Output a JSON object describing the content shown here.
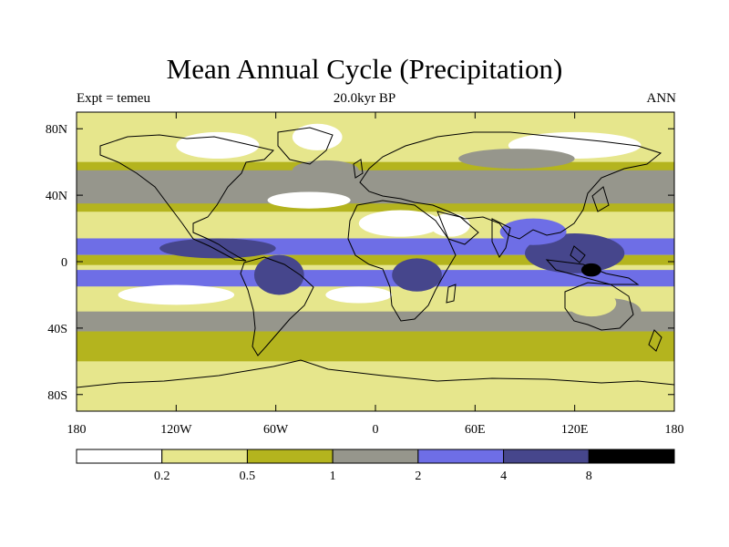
{
  "title": "Mean Annual Cycle (Precipitation)",
  "subtitle_left": "Expt = temeu",
  "subtitle_center": "20.0kyr BP",
  "subtitle_right": "ANN",
  "lat_ticks": [
    {
      "label": "80N",
      "lat": 80
    },
    {
      "label": "40N",
      "lat": 40
    },
    {
      "label": "0",
      "lat": 0
    },
    {
      "label": "40S",
      "lat": -40
    },
    {
      "label": "80S",
      "lat": -80
    }
  ],
  "lon_ticks": [
    {
      "label": "180",
      "lon": -180
    },
    {
      "label": "120W",
      "lon": -120
    },
    {
      "label": "60W",
      "lon": -60
    },
    {
      "label": "0",
      "lon": 0
    },
    {
      "label": "60E",
      "lon": 60
    },
    {
      "label": "120E",
      "lon": 120
    },
    {
      "label": "180",
      "lon": 180
    }
  ],
  "colorbar": {
    "colors": [
      "#ffffff",
      "#e6e68c",
      "#b4b41e",
      "#96968c",
      "#6e6ee6",
      "#46468c",
      "#000000"
    ],
    "labels": [
      "0.2",
      "0.5",
      "1",
      "2",
      "4",
      "8"
    ]
  },
  "precip_bands": [
    {
      "class": 1,
      "lat_from": 90,
      "lat_to": 60
    },
    {
      "class": 2,
      "lat_from": 60,
      "lat_to": 30
    },
    {
      "class": 3,
      "lat_from": 55,
      "lat_to": 35
    },
    {
      "class": 1,
      "lat_from": 30,
      "lat_to": 18
    },
    {
      "class": 4,
      "lat_from": 14,
      "lat_to": 4
    },
    {
      "class": 2,
      "lat_from": 4,
      "lat_to": -2
    },
    {
      "class": 4,
      "lat_from": -5,
      "lat_to": -15
    },
    {
      "class": 1,
      "lat_from": -15,
      "lat_to": -28
    },
    {
      "class": 3,
      "lat_from": -30,
      "lat_to": -42
    },
    {
      "class": 2,
      "lat_from": -42,
      "lat_to": -60
    },
    {
      "class": 1,
      "lat_from": -62,
      "lat_to": -90
    }
  ],
  "precip_patches": [
    {
      "class": 5,
      "lon": -95,
      "lat": 8,
      "rlon": 35,
      "rlat": 6
    },
    {
      "class": 5,
      "lon": -58,
      "lat": -8,
      "rlon": 15,
      "rlat": 12
    },
    {
      "class": 5,
      "lon": 25,
      "lat": -8,
      "rlon": 15,
      "rlat": 10
    },
    {
      "class": 5,
      "lon": 120,
      "lat": 5,
      "rlon": 30,
      "rlat": 12
    },
    {
      "class": 6,
      "lon": 130,
      "lat": -5,
      "rlon": 6,
      "rlat": 4
    },
    {
      "class": 4,
      "lon": 95,
      "lat": 18,
      "rlon": 20,
      "rlat": 8
    },
    {
      "class": 0,
      "lon": 15,
      "lat": 23,
      "rlon": 25,
      "rlat": 8
    },
    {
      "class": 0,
      "lon": 45,
      "lat": 22,
      "rlon": 12,
      "rlat": 7
    },
    {
      "class": 0,
      "lon": -120,
      "lat": -20,
      "rlon": 35,
      "rlat": 6
    },
    {
      "class": 0,
      "lon": -10,
      "lat": -20,
      "rlon": 20,
      "rlat": 5
    },
    {
      "class": 0,
      "lon": -40,
      "lat": 37,
      "rlon": 25,
      "rlat": 5
    },
    {
      "class": 0,
      "lon": -35,
      "lat": 75,
      "rlon": 15,
      "rlat": 8
    },
    {
      "class": 0,
      "lon": -95,
      "lat": 70,
      "rlon": 25,
      "rlat": 8
    },
    {
      "class": 0,
      "lon": 120,
      "lat": 70,
      "rlon": 40,
      "rlat": 8
    },
    {
      "class": 3,
      "lon": 85,
      "lat": 62,
      "rlon": 35,
      "rlat": 6
    },
    {
      "class": 3,
      "lon": -30,
      "lat": 55,
      "rlon": 20,
      "rlat": 6
    },
    {
      "class": 3,
      "lon": 140,
      "lat": -30,
      "rlon": 20,
      "rlat": 8
    },
    {
      "class": 1,
      "lon": 130,
      "lat": -25,
      "rlon": 15,
      "rlat": 8
    }
  ]
}
